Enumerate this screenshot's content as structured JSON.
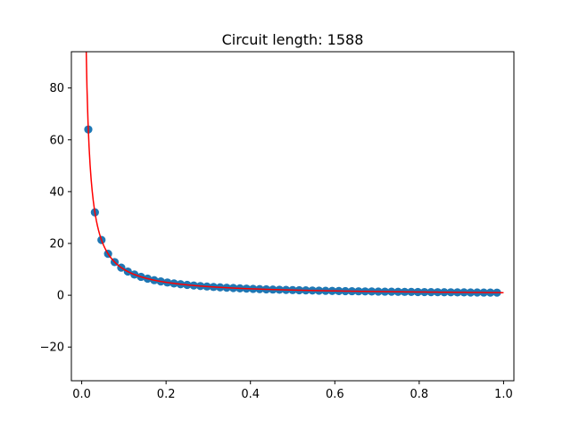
{
  "chart_data": {
    "type": "scatter",
    "title": "Circuit length: 1588",
    "xlabel": "",
    "ylabel": "",
    "xlim": [
      -0.0245,
      1.0245
    ],
    "ylim": [
      -33.0,
      94.0
    ],
    "grid": false,
    "xticks": [
      0.0,
      0.2,
      0.4,
      0.6,
      0.8,
      1.0
    ],
    "xtick_labels": [
      "0.0",
      "0.2",
      "0.4",
      "0.6",
      "0.8",
      "1.0"
    ],
    "yticks": [
      -20,
      0,
      20,
      40,
      60,
      80
    ],
    "ytick_labels": [
      "−20",
      "0",
      "20",
      "40",
      "60",
      "80"
    ],
    "series": [
      {
        "kind": "scatter",
        "color": "#1f77b4",
        "x": [
          0.015625,
          0.03125,
          0.046875,
          0.0625,
          0.078125,
          0.09375,
          0.109375,
          0.125,
          0.140625,
          0.15625,
          0.171875,
          0.1875,
          0.203125,
          0.21875,
          0.234375,
          0.25,
          0.265625,
          0.28125,
          0.296875,
          0.3125,
          0.328125,
          0.34375,
          0.359375,
          0.375,
          0.390625,
          0.40625,
          0.421875,
          0.4375,
          0.453125,
          0.46875,
          0.484375,
          0.5,
          0.515625,
          0.53125,
          0.546875,
          0.5625,
          0.578125,
          0.59375,
          0.609375,
          0.625,
          0.640625,
          0.65625,
          0.671875,
          0.6875,
          0.703125,
          0.71875,
          0.734375,
          0.75,
          0.765625,
          0.78125,
          0.796875,
          0.8125,
          0.828125,
          0.84375,
          0.859375,
          0.875,
          0.890625,
          0.90625,
          0.921875,
          0.9375,
          0.953125,
          0.96875,
          0.984375
        ],
        "y": [
          64.0,
          32.0,
          21.333,
          16.0,
          12.8,
          10.667,
          9.143,
          8.0,
          7.111,
          6.4,
          5.818,
          5.333,
          4.923,
          4.571,
          4.267,
          4.0,
          3.765,
          3.556,
          3.368,
          3.2,
          3.048,
          2.909,
          2.783,
          2.667,
          2.56,
          2.462,
          2.37,
          2.286,
          2.207,
          2.133,
          2.065,
          2.0,
          1.939,
          1.882,
          1.829,
          1.778,
          1.73,
          1.684,
          1.641,
          1.6,
          1.561,
          1.524,
          1.488,
          1.455,
          1.422,
          1.391,
          1.362,
          1.333,
          1.306,
          1.28,
          1.255,
          1.231,
          1.208,
          1.185,
          1.164,
          1.143,
          1.123,
          1.103,
          1.085,
          1.067,
          1.049,
          1.032,
          1.016
        ]
      },
      {
        "kind": "line",
        "color": "#ff0000",
        "function": "1/x",
        "x_range": [
          0.01,
          1.0
        ]
      }
    ]
  }
}
